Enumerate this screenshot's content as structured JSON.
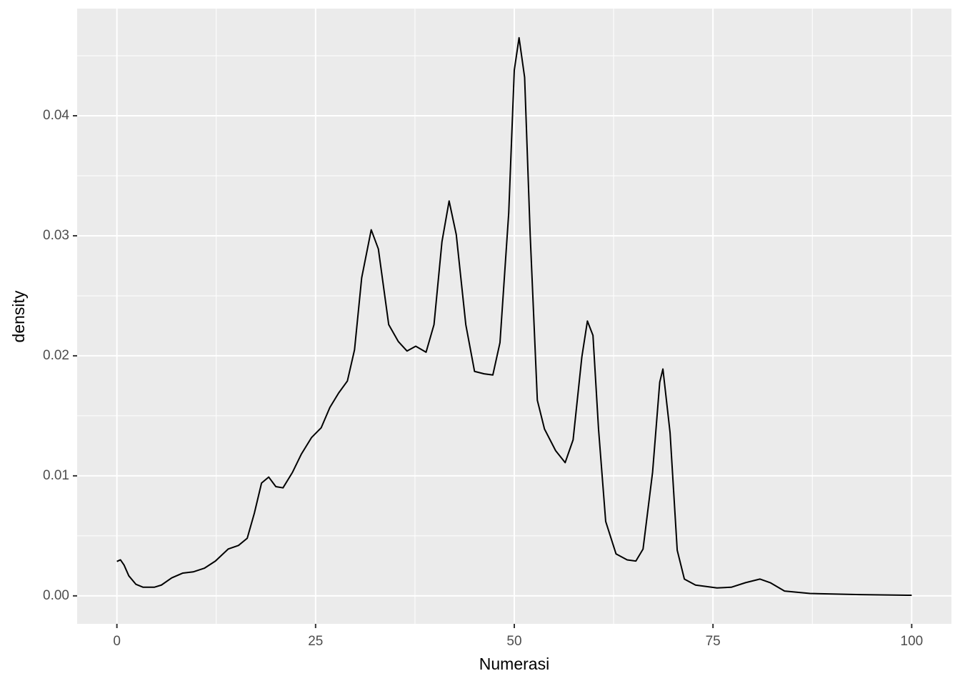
{
  "chart_data": {
    "type": "density",
    "x_label": "Numerasi",
    "y_label": "density",
    "x": [
      0,
      0.45,
      0.9,
      1.5,
      2.4,
      3.3,
      4.7,
      5.6,
      6.9,
      8.3,
      9.6,
      11,
      12.4,
      14,
      15.3,
      16.4,
      17.3,
      18.2,
      19.1,
      20,
      20.9,
      22.1,
      23.2,
      24.5,
      25.7,
      26.8,
      27.9,
      29,
      29.9,
      30.8,
      32,
      32.9,
      34.2,
      35.4,
      36.5,
      37.6,
      38.9,
      39.9,
      40.9,
      41.8,
      42.7,
      43.9,
      45,
      46.2,
      47.3,
      48.2,
      49.3,
      50,
      50.6,
      51.3,
      52,
      52.9,
      53.8,
      55.2,
      56.4,
      57.4,
      58.5,
      59.2,
      59.9,
      60.6,
      61.5,
      62.8,
      64.2,
      65.3,
      66.2,
      67.4,
      68.3,
      68.7,
      69.6,
      70.5,
      71.4,
      72.8,
      75.5,
      77.3,
      79.1,
      80.9,
      82.2,
      84,
      87.2,
      93.5,
      100
    ],
    "values": [
      0.00287,
      0.003,
      0.00257,
      0.00167,
      0.00096,
      0.00072,
      0.00072,
      0.0009,
      0.0015,
      0.0019,
      0.002,
      0.0023,
      0.0029,
      0.0039,
      0.0042,
      0.0048,
      0.0069,
      0.0094,
      0.0099,
      0.0091,
      0.009,
      0.0103,
      0.0118,
      0.0132,
      0.014,
      0.0157,
      0.0169,
      0.0179,
      0.0205,
      0.0265,
      0.0305,
      0.0289,
      0.0226,
      0.0212,
      0.0204,
      0.0208,
      0.0203,
      0.0226,
      0.0295,
      0.0329,
      0.0301,
      0.0226,
      0.0187,
      0.0185,
      0.0184,
      0.0211,
      0.0319,
      0.0438,
      0.0465,
      0.0432,
      0.0301,
      0.0163,
      0.0139,
      0.0121,
      0.0111,
      0.013,
      0.0199,
      0.0229,
      0.0217,
      0.0139,
      0.0062,
      0.0035,
      0.003,
      0.0029,
      0.0039,
      0.0103,
      0.0178,
      0.0189,
      0.0136,
      0.0038,
      0.0014,
      0.0009,
      0.00066,
      0.00072,
      0.0011,
      0.0014,
      0.0011,
      0.0004,
      0.0002,
      0.0001,
      5e-05
    ],
    "color": "#000000",
    "xlim": [
      -5,
      105
    ],
    "ylim": [
      -0.00233,
      0.04893
    ],
    "xticks": [
      0,
      25,
      50,
      75,
      100
    ],
    "yticks": [
      {
        "value": 0,
        "label": "0.00"
      },
      {
        "value": 0.01,
        "label": "0.01"
      },
      {
        "value": 0.02,
        "label": "0.02"
      },
      {
        "value": 0.03,
        "label": "0.03"
      },
      {
        "value": 0.04,
        "label": "0.04"
      }
    ],
    "x_minor_grid": [
      12.5,
      37.5,
      62.5,
      87.5
    ],
    "y_minor_grid": [
      0.005,
      0.015,
      0.025,
      0.035,
      0.045
    ],
    "grid": true
  }
}
